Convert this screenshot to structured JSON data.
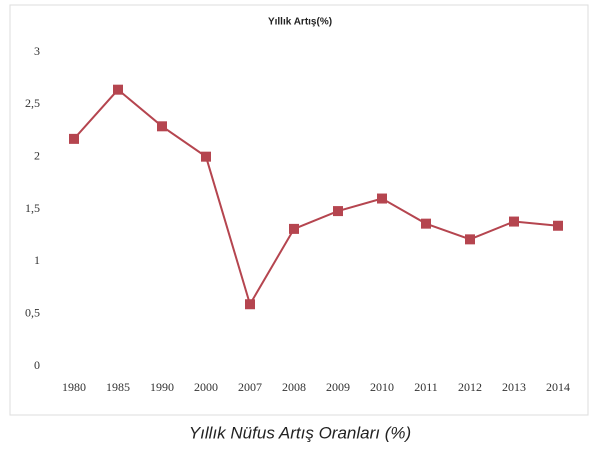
{
  "chart_data": {
    "type": "line",
    "title": "Yıllık Artış(%)",
    "caption": "Yıllık Nüfus Artış Oranları (%)",
    "categories": [
      "1980",
      "1985",
      "1990",
      "2000",
      "2007",
      "2008",
      "2009",
      "2010",
      "2011",
      "2012",
      "2013",
      "2014"
    ],
    "series": [
      {
        "name": "Yıllık Artış(%)",
        "color": "#b5454f",
        "values": [
          2.17,
          2.64,
          2.29,
          2.0,
          0.59,
          1.31,
          1.48,
          1.6,
          1.36,
          1.21,
          1.38,
          1.34
        ]
      }
    ],
    "ylim": [
      0,
      3
    ],
    "yticks": [
      0,
      {
        "value": 0.5,
        "label": "0,5"
      },
      1,
      {
        "value": 1.5,
        "label": "1,5"
      },
      2,
      {
        "value": 2.5,
        "label": "2,5"
      },
      3
    ],
    "grid": false,
    "legend": false
  }
}
